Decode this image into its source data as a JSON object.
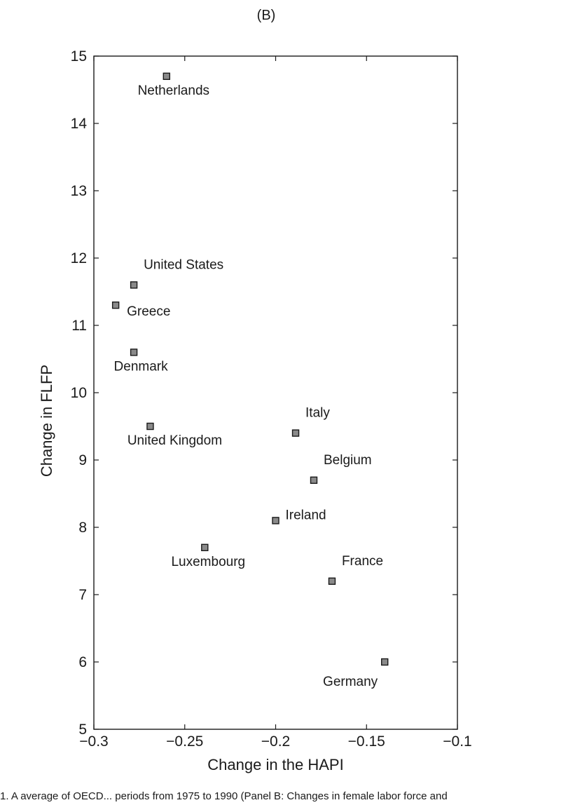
{
  "panel_label": "(B)",
  "caption": "1. A average of OECD... periods from 1975 to 1990 (Panel B: Changes in female labor force and",
  "chart_data": {
    "type": "scatter",
    "title": "",
    "xlabel": "Change in the HAPI",
    "ylabel": "Change in FLFP",
    "xlim": [
      -0.3,
      -0.1
    ],
    "ylim": [
      5,
      15
    ],
    "xticks": [
      -0.3,
      -0.25,
      -0.2,
      -0.15,
      -0.1
    ],
    "xtick_labels": [
      "−0.3",
      "−0.25",
      "−0.2",
      "−0.15",
      "−0.1"
    ],
    "yticks": [
      5,
      6,
      7,
      8,
      9,
      10,
      11,
      12,
      13,
      14,
      15
    ],
    "ytick_labels": [
      "5",
      "6",
      "7",
      "8",
      "9",
      "10",
      "11",
      "12",
      "13",
      "14",
      "15"
    ],
    "grid": false,
    "points": [
      {
        "label": "Netherlands",
        "x": -0.26,
        "y": 14.7,
        "label_pos": "below"
      },
      {
        "label": "United States",
        "x": -0.278,
        "y": 11.6,
        "label_pos": "above-right"
      },
      {
        "label": "Greece",
        "x": -0.288,
        "y": 11.3,
        "label_pos": "below-right"
      },
      {
        "label": "Denmark",
        "x": -0.278,
        "y": 10.6,
        "label_pos": "below"
      },
      {
        "label": "United Kingdom",
        "x": -0.269,
        "y": 9.5,
        "label_pos": "below"
      },
      {
        "label": "Italy",
        "x": -0.189,
        "y": 9.4,
        "label_pos": "above-right"
      },
      {
        "label": "Belgium",
        "x": -0.179,
        "y": 8.7,
        "label_pos": "above-right"
      },
      {
        "label": "Ireland",
        "x": -0.2,
        "y": 8.1,
        "label_pos": "right"
      },
      {
        "label": "Luxembourg",
        "x": -0.239,
        "y": 7.7,
        "label_pos": "below"
      },
      {
        "label": "France",
        "x": -0.169,
        "y": 7.2,
        "label_pos": "above-right"
      },
      {
        "label": "Germany",
        "x": -0.14,
        "y": 6.0,
        "label_pos": "below-left"
      }
    ]
  }
}
